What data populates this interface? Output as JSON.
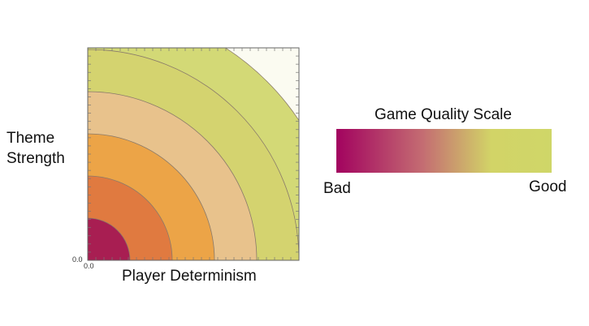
{
  "chart_data": {
    "type": "contour",
    "xlabel": "Player Determinism",
    "ylabel_line1": "Theme",
    "ylabel_line2": "Strength",
    "x_tick0": "0.0",
    "y_tick0": "0.0",
    "contour_radii": [
      0.2,
      0.4,
      0.6,
      0.8,
      1.0,
      1.2
    ],
    "band_colors": [
      "#a81e52",
      "#e07a40",
      "#eca447",
      "#e8c28c",
      "#d4d36f",
      "#d3d976",
      "#fbfbf1"
    ],
    "legend": {
      "title": "Game Quality Scale",
      "low_label": "Bad",
      "high_label": "Good",
      "gradient": [
        "#a2035f",
        "#c46c72",
        "#d2d467",
        "#cfd668"
      ]
    }
  }
}
